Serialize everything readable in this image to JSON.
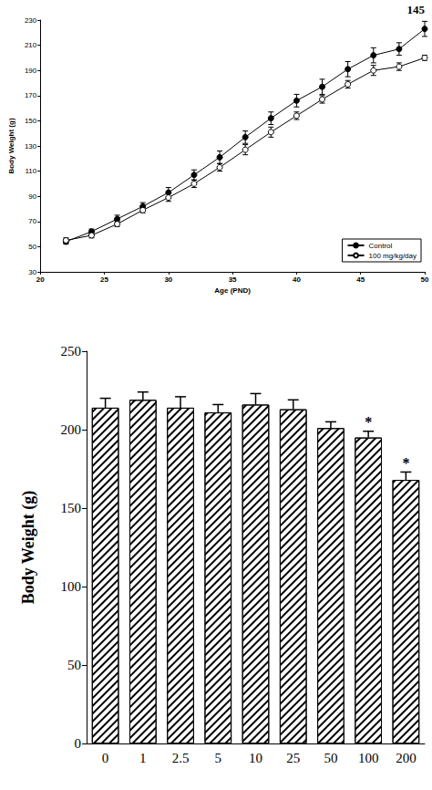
{
  "page_number": "145",
  "chart_data": [
    {
      "type": "line",
      "x_label": "Age (PND)",
      "y_label": "Body Weight (g)",
      "x": [
        22,
        24,
        26,
        28,
        30,
        32,
        34,
        36,
        38,
        40,
        42,
        44,
        46,
        48,
        50
      ],
      "series": [
        {
          "name": "Control",
          "color": "#000000",
          "marker": "filled_circle",
          "line_style": "solid",
          "values": [
            54,
            62,
            72,
            82,
            93,
            107,
            121,
            137,
            152,
            166,
            177,
            191,
            202,
            207,
            223
          ],
          "errors": [
            2,
            2,
            3,
            3,
            4,
            4,
            5,
            5,
            5,
            5,
            6,
            6,
            6,
            5,
            6
          ]
        },
        {
          "name": "100 mg/kg/day",
          "color": "#000000",
          "marker": "open_circle",
          "line_style": "solid",
          "values": [
            55,
            59,
            68,
            79,
            89,
            100,
            113,
            127,
            141,
            154,
            167,
            179,
            190,
            193,
            200
          ],
          "errors": [
            2,
            2,
            2,
            2,
            3,
            3,
            3,
            4,
            4,
            3,
            3,
            3,
            4,
            3,
            2
          ]
        }
      ],
      "xlim": [
        20,
        50
      ],
      "xticks": [
        20,
        25,
        30,
        35,
        40,
        45,
        50
      ],
      "ylim": [
        30,
        230
      ],
      "yticks": [
        30,
        50,
        70,
        90,
        110,
        130,
        150,
        170,
        190,
        210,
        230
      ],
      "legend": "bottom-right",
      "grid": false
    },
    {
      "type": "bar",
      "y_label": "Body Weight (g)",
      "categories": [
        "0",
        "1",
        "2.5",
        "5",
        "10",
        "25",
        "50",
        "100",
        "200"
      ],
      "values": [
        214,
        219,
        214,
        211,
        216,
        213,
        201,
        195,
        168
      ],
      "errors": [
        6,
        5,
        7,
        5,
        7,
        6,
        4,
        4,
        5
      ],
      "significance": [
        null,
        null,
        null,
        null,
        null,
        null,
        null,
        "*",
        "*"
      ],
      "color": "#000000",
      "ylim": [
        0,
        250
      ],
      "yticks": [
        0,
        50,
        100,
        150,
        200,
        250
      ],
      "grid": false
    }
  ]
}
